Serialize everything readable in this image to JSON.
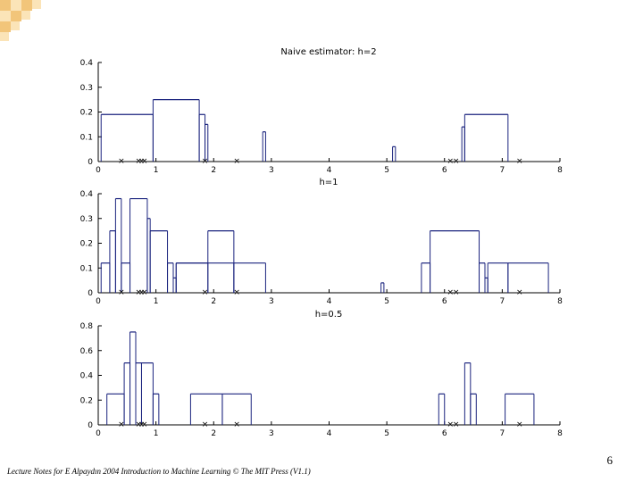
{
  "slide": {
    "page_number": "6",
    "footer": "Lecture Notes for E Alpaydın 2004 Introduction to Machine Learning © The MIT Press (V1.1)"
  },
  "colors": {
    "line": "#1a237e",
    "marker": "#cc2222",
    "deco_dark": "#f2c57a",
    "deco_light": "#fbe4b8"
  },
  "chart_data": [
    {
      "type": "line",
      "title": "Naive estimator: h=2",
      "xlim": [
        0,
        8
      ],
      "ylim": [
        0,
        0.4
      ],
      "xticks": [
        0,
        1,
        2,
        3,
        4,
        5,
        6,
        7,
        8
      ],
      "yticks": [
        0,
        0.1,
        0.2,
        0.3,
        0.4
      ],
      "ytick_labels": [
        "0",
        "0.1",
        "0.2",
        "0.3",
        "0.4"
      ],
      "samples": [
        0.4,
        0.7,
        0.75,
        0.8,
        1.85,
        2.4,
        6.1,
        6.2,
        7.3
      ],
      "segments": [
        [
          0.05,
          0.95,
          0.19
        ],
        [
          0.95,
          1.75,
          0.25
        ],
        [
          1.75,
          1.85,
          0.19
        ],
        [
          1.85,
          1.9,
          0.15
        ],
        [
          2.85,
          2.9,
          0.12
        ],
        [
          5.1,
          5.15,
          0.06
        ],
        [
          6.3,
          6.35,
          0.14
        ],
        [
          6.35,
          7.1,
          0.19
        ]
      ]
    },
    {
      "type": "line",
      "title": "h=1",
      "xlim": [
        0,
        8
      ],
      "ylim": [
        0,
        0.4
      ],
      "xticks": [
        0,
        1,
        2,
        3,
        4,
        5,
        6,
        7,
        8
      ],
      "yticks": [
        0,
        0.1,
        0.2,
        0.3,
        0.4
      ],
      "ytick_labels": [
        "0",
        "0.1",
        "0.2",
        "0.3",
        "0.4"
      ],
      "samples": [
        0.4,
        0.7,
        0.75,
        0.8,
        1.85,
        2.4,
        6.1,
        6.2,
        7.3
      ],
      "segments": [
        [
          0.05,
          0.2,
          0.12
        ],
        [
          0.2,
          0.3,
          0.25
        ],
        [
          0.3,
          0.4,
          0.38
        ],
        [
          0.4,
          0.55,
          0.12
        ],
        [
          0.55,
          0.85,
          0.38
        ],
        [
          0.85,
          0.9,
          0.3
        ],
        [
          0.9,
          1.2,
          0.25
        ],
        [
          1.2,
          1.3,
          0.12
        ],
        [
          1.3,
          1.35,
          0.06
        ],
        [
          1.35,
          2.35,
          0.12
        ],
        [
          1.35,
          1.9,
          0.12
        ],
        [
          1.9,
          2.35,
          0.25
        ],
        [
          2.35,
          2.9,
          0.12
        ],
        [
          4.9,
          4.95,
          0.04
        ],
        [
          5.6,
          5.75,
          0.12
        ],
        [
          5.75,
          6.6,
          0.25
        ],
        [
          6.6,
          6.7,
          0.12
        ],
        [
          6.7,
          6.75,
          0.06
        ],
        [
          6.75,
          7.1,
          0.12
        ],
        [
          7.1,
          7.8,
          0.12
        ]
      ]
    },
    {
      "type": "line",
      "title": "h=0.5",
      "xlim": [
        0,
        8
      ],
      "ylim": [
        0,
        0.8
      ],
      "xticks": [
        0,
        1,
        2,
        3,
        4,
        5,
        6,
        7,
        8
      ],
      "yticks": [
        0,
        0.2,
        0.4,
        0.6,
        0.8
      ],
      "ytick_labels": [
        "0",
        "0.2",
        "0.4",
        "0.6",
        "0.8"
      ],
      "samples": [
        0.4,
        0.7,
        0.75,
        0.8,
        1.85,
        2.4,
        6.1,
        6.2,
        7.3
      ],
      "segments": [
        [
          0.15,
          0.45,
          0.25
        ],
        [
          0.45,
          0.55,
          0.5
        ],
        [
          0.55,
          0.65,
          0.75
        ],
        [
          0.65,
          0.75,
          0.5
        ],
        [
          0.75,
          0.95,
          0.5
        ],
        [
          0.95,
          1.05,
          0.25
        ],
        [
          1.6,
          2.15,
          0.25
        ],
        [
          2.15,
          2.65,
          0.25
        ],
        [
          5.9,
          6.0,
          0.25
        ],
        [
          6.35,
          6.45,
          0.5
        ],
        [
          6.45,
          6.55,
          0.25
        ],
        [
          7.05,
          7.55,
          0.25
        ]
      ]
    }
  ]
}
